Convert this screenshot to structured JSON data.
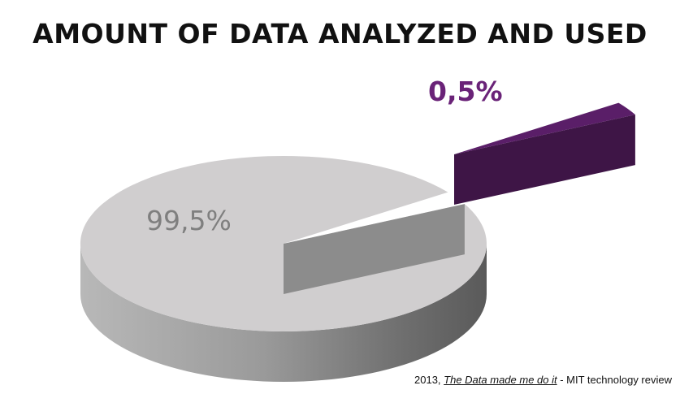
{
  "chart_data": {
    "type": "pie",
    "title": "AMOUNT OF DATA ANALYZED AND USED",
    "slices": [
      {
        "label": "99,5%",
        "value": 99.5,
        "color": "#d0cecf",
        "side_color": "#8c8c8c",
        "label_color": "#7f7f7f"
      },
      {
        "label": "0,5%",
        "value": 0.5,
        "color": "#5a1e68",
        "side_color": "#3e1546",
        "label_color": "#6a2378"
      }
    ]
  },
  "source": {
    "year": "2013, ",
    "publication": "The Data made me do it",
    "suffix": " - MIT technology review"
  }
}
